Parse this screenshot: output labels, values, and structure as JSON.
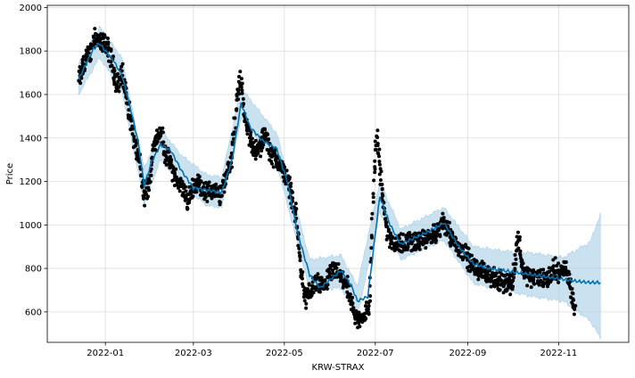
{
  "chart_data": {
    "type": "line",
    "title": "",
    "xlabel": "KRW-STRAX",
    "ylabel": "Price",
    "x_ticks": [
      "2022-01",
      "2022-03",
      "2022-05",
      "2022-07",
      "2022-09",
      "2022-11"
    ],
    "y_ticks": [
      600,
      800,
      1000,
      1200,
      1400,
      1600,
      1800,
      2000
    ],
    "ylim": [
      460,
      2010
    ],
    "xlim": [
      "2021-11-23",
      "2022-12-18"
    ],
    "grid": true,
    "colors": {
      "forecast": "#0072B2",
      "band": "#a6cfe6",
      "observed": "#000000"
    },
    "series": [
      {
        "kind": "forecast",
        "points": [
          [
            "2021-12-14",
            1670
          ],
          [
            "2021-12-19",
            1740
          ],
          [
            "2021-12-24",
            1810
          ],
          [
            "2021-12-28",
            1835
          ],
          [
            "2022-01-01",
            1800
          ],
          [
            "2022-01-06",
            1760
          ],
          [
            "2022-01-12",
            1690
          ],
          [
            "2022-01-17",
            1560
          ],
          [
            "2022-01-23",
            1380
          ],
          [
            "2022-01-27",
            1180
          ],
          [
            "2022-02-01",
            1290
          ],
          [
            "2022-02-07",
            1370
          ],
          [
            "2022-02-14",
            1340
          ],
          [
            "2022-02-21",
            1250
          ],
          [
            "2022-03-01",
            1170
          ],
          [
            "2022-03-10",
            1160
          ],
          [
            "2022-03-20",
            1150
          ],
          [
            "2022-03-27",
            1300
          ],
          [
            "2022-04-02",
            1560
          ],
          [
            "2022-04-08",
            1450
          ],
          [
            "2022-04-16",
            1390
          ],
          [
            "2022-04-26",
            1350
          ],
          [
            "2022-05-03",
            1200
          ],
          [
            "2022-05-10",
            960
          ],
          [
            "2022-05-18",
            770
          ],
          [
            "2022-05-25",
            710
          ],
          [
            "2022-06-01",
            750
          ],
          [
            "2022-06-08",
            790
          ],
          [
            "2022-06-15",
            720
          ],
          [
            "2022-06-19",
            650
          ],
          [
            "2022-06-26",
            670
          ],
          [
            "2022-07-04",
            1130
          ],
          [
            "2022-07-11",
            1000
          ],
          [
            "2022-07-18",
            910
          ],
          [
            "2022-07-27",
            940
          ],
          [
            "2022-08-06",
            970
          ],
          [
            "2022-08-16",
            1010
          ],
          [
            "2022-08-26",
            900
          ],
          [
            "2022-09-05",
            820
          ],
          [
            "2022-09-15",
            800
          ],
          [
            "2022-09-25",
            790
          ],
          [
            "2022-10-05",
            780
          ],
          [
            "2022-10-15",
            770
          ],
          [
            "2022-10-25",
            760
          ],
          [
            "2022-11-04",
            750
          ],
          [
            "2022-11-14",
            740
          ],
          [
            "2022-11-22",
            735
          ],
          [
            "2022-11-29",
            735
          ]
        ]
      },
      {
        "kind": "band",
        "points": [
          [
            "2021-12-14",
            1600,
            1740
          ],
          [
            "2021-12-28",
            1770,
            1910
          ],
          [
            "2022-01-12",
            1620,
            1770
          ],
          [
            "2022-01-27",
            1100,
            1260
          ],
          [
            "2022-02-07",
            1300,
            1440
          ],
          [
            "2022-02-21",
            1180,
            1320
          ],
          [
            "2022-03-10",
            1090,
            1230
          ],
          [
            "2022-03-20",
            1080,
            1220
          ],
          [
            "2022-04-02",
            1490,
            1630
          ],
          [
            "2022-04-26",
            1280,
            1420
          ],
          [
            "2022-05-18",
            700,
            840
          ],
          [
            "2022-06-08",
            710,
            860
          ],
          [
            "2022-06-19",
            580,
            720
          ],
          [
            "2022-07-04",
            1060,
            1200
          ],
          [
            "2022-07-18",
            840,
            980
          ],
          [
            "2022-08-16",
            930,
            1080
          ],
          [
            "2022-09-05",
            730,
            900
          ],
          [
            "2022-09-25",
            700,
            880
          ],
          [
            "2022-10-15",
            670,
            870
          ],
          [
            "2022-11-04",
            650,
            850
          ],
          [
            "2022-11-22",
            560,
            920
          ],
          [
            "2022-11-29",
            480,
            1050
          ]
        ]
      },
      {
        "kind": "observed",
        "points": [
          [
            "2021-12-14",
            1660
          ],
          [
            "2021-12-18",
            1750
          ],
          [
            "2021-12-22",
            1800
          ],
          [
            "2021-12-25",
            1880
          ],
          [
            "2021-12-28",
            1830
          ],
          [
            "2022-01-01",
            1840
          ],
          [
            "2022-01-05",
            1760
          ],
          [
            "2022-01-09",
            1640
          ],
          [
            "2022-01-12",
            1700
          ],
          [
            "2022-01-16",
            1560
          ],
          [
            "2022-01-20",
            1400
          ],
          [
            "2022-01-24",
            1280
          ],
          [
            "2022-01-27",
            1120
          ],
          [
            "2022-01-31",
            1220
          ],
          [
            "2022-02-03",
            1380
          ],
          [
            "2022-02-07",
            1440
          ],
          [
            "2022-02-10",
            1330
          ],
          [
            "2022-02-14",
            1270
          ],
          [
            "2022-02-18",
            1200
          ],
          [
            "2022-02-22",
            1170
          ],
          [
            "2022-02-25",
            1100
          ],
          [
            "2022-03-01",
            1180
          ],
          [
            "2022-03-05",
            1190
          ],
          [
            "2022-03-09",
            1150
          ],
          [
            "2022-03-14",
            1160
          ],
          [
            "2022-03-19",
            1130
          ],
          [
            "2022-03-23",
            1230
          ],
          [
            "2022-03-27",
            1320
          ],
          [
            "2022-03-30",
            1560
          ],
          [
            "2022-04-02",
            1680
          ],
          [
            "2022-04-05",
            1460
          ],
          [
            "2022-04-09",
            1380
          ],
          [
            "2022-04-13",
            1330
          ],
          [
            "2022-04-18",
            1420
          ],
          [
            "2022-04-22",
            1330
          ],
          [
            "2022-04-27",
            1290
          ],
          [
            "2022-05-01",
            1240
          ],
          [
            "2022-05-05",
            1170
          ],
          [
            "2022-05-09",
            1030
          ],
          [
            "2022-05-12",
            800
          ],
          [
            "2022-05-15",
            660
          ],
          [
            "2022-05-19",
            700
          ],
          [
            "2022-05-23",
            740
          ],
          [
            "2022-05-27",
            700
          ],
          [
            "2022-05-31",
            760
          ],
          [
            "2022-06-04",
            790
          ],
          [
            "2022-06-08",
            760
          ],
          [
            "2022-06-12",
            720
          ],
          [
            "2022-06-16",
            600
          ],
          [
            "2022-06-19",
            560
          ],
          [
            "2022-06-23",
            580
          ],
          [
            "2022-06-27",
            620
          ],
          [
            "2022-06-30",
            1200
          ],
          [
            "2022-07-02",
            1420
          ],
          [
            "2022-07-05",
            1200
          ],
          [
            "2022-07-09",
            960
          ],
          [
            "2022-07-13",
            920
          ],
          [
            "2022-07-18",
            910
          ],
          [
            "2022-07-24",
            930
          ],
          [
            "2022-07-30",
            920
          ],
          [
            "2022-08-05",
            940
          ],
          [
            "2022-08-11",
            960
          ],
          [
            "2022-08-16",
            1020
          ],
          [
            "2022-08-20",
            960
          ],
          [
            "2022-08-25",
            900
          ],
          [
            "2022-08-30",
            880
          ],
          [
            "2022-09-04",
            810
          ],
          [
            "2022-09-09",
            790
          ],
          [
            "2022-09-14",
            780
          ],
          [
            "2022-09-20",
            740
          ],
          [
            "2022-09-26",
            740
          ],
          [
            "2022-10-01",
            730
          ],
          [
            "2022-10-05",
            950
          ],
          [
            "2022-10-08",
            790
          ],
          [
            "2022-10-13",
            760
          ],
          [
            "2022-10-19",
            760
          ],
          [
            "2022-10-24",
            750
          ],
          [
            "2022-10-29",
            800
          ],
          [
            "2022-11-02",
            780
          ],
          [
            "2022-11-06",
            800
          ],
          [
            "2022-11-09",
            720
          ],
          [
            "2022-11-12",
            600
          ]
        ]
      }
    ]
  }
}
